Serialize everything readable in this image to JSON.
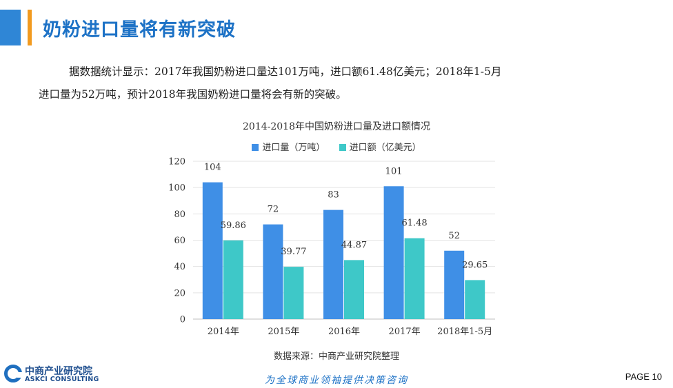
{
  "header": {
    "title": "奶粉进口量将有新突破"
  },
  "body_text": {
    "line1": "据数据统计显示：2017年我国奶粉进口量达101万吨，进口额61.48亿美元；2018年1-5月",
    "line2": "进口量为52万吨，预计2018年我国奶粉进口量将会有新的突破。"
  },
  "chart_data": {
    "type": "bar",
    "title": "2014-2018年中国奶粉进口量及进口额情况",
    "categories": [
      "2014年",
      "2015年",
      "2016年",
      "2017年",
      "2018年1-5月"
    ],
    "series": [
      {
        "name": "进口量（万吨）",
        "values": [
          104,
          72,
          83,
          101,
          52
        ],
        "color": "#3f8fe6",
        "labels": [
          "104",
          "72",
          "83",
          "101",
          "52"
        ]
      },
      {
        "name": "进口额（亿美元）",
        "values": [
          59.86,
          39.77,
          44.87,
          61.48,
          29.65
        ],
        "color": "#3ec8c8",
        "labels": [
          "59.86",
          "39.77",
          "44.87",
          "61.48",
          "29.65"
        ]
      }
    ],
    "ylim": [
      0,
      120
    ],
    "yticks": [
      "0",
      "20",
      "40",
      "60",
      "80",
      "100",
      "120"
    ],
    "grid": true,
    "legend_position": "top"
  },
  "footer": {
    "source": "数据来源：中商产业研究院整理",
    "logo_cn": "中商产业研究院",
    "logo_en": "ASKCI CONSULTING",
    "slogan": "为全球商业领袖提供决策咨询",
    "page": "PAGE  10"
  }
}
